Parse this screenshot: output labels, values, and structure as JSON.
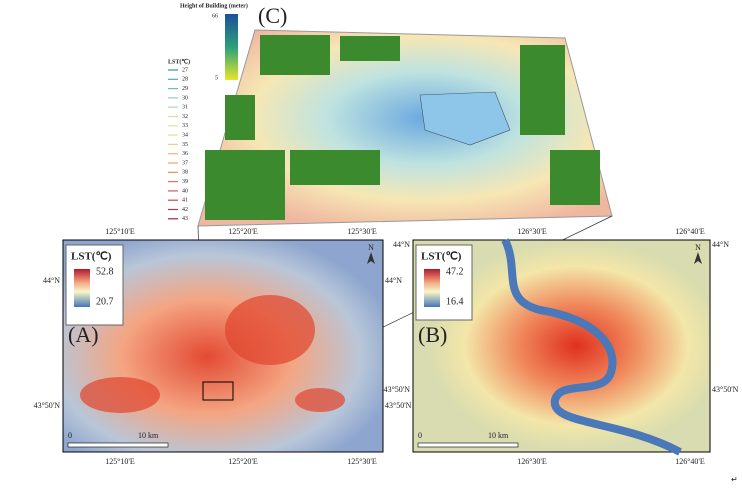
{
  "panel_c": {
    "label": "(C)",
    "building_legend": {
      "title": "Height of Building (meter)",
      "max": "66",
      "min": "5"
    },
    "lst_legend": {
      "title": "LST(℃)",
      "levels": [
        "27",
        "28",
        "29",
        "30",
        "31",
        "32",
        "33",
        "34",
        "35",
        "36",
        "37",
        "38",
        "39",
        "40",
        "41",
        "42",
        "43"
      ]
    }
  },
  "panel_a": {
    "label": "(A)",
    "legend_title": "LST(℃)",
    "max": "52.8",
    "min": "20.7",
    "top_labels": [
      "125°10'E",
      "125°20'E",
      "125°30'E"
    ],
    "bottom_labels": [
      "125°10'E",
      "125°20'E",
      "125°30'E"
    ],
    "left_labels": [
      "44°N",
      "43°50'N"
    ],
    "right_labels": [
      "44°N",
      "43°50'N"
    ],
    "scale": [
      "0",
      "10 km"
    ],
    "north": "N"
  },
  "panel_b": {
    "label": "(B)",
    "legend_title": "LST(℃)",
    "max": "47.2",
    "min": "16.4",
    "top_labels": [
      "126°30'E",
      "126°40'E"
    ],
    "bottom_labels": [
      "126°30'E",
      "126°40'E"
    ],
    "left_labels": [
      "44°N",
      "43°50'N"
    ],
    "right_labels": [
      "44°N",
      "43°50'N"
    ],
    "scale": [
      "0",
      "10 km"
    ],
    "north": "N"
  },
  "footer_mark": "↵"
}
